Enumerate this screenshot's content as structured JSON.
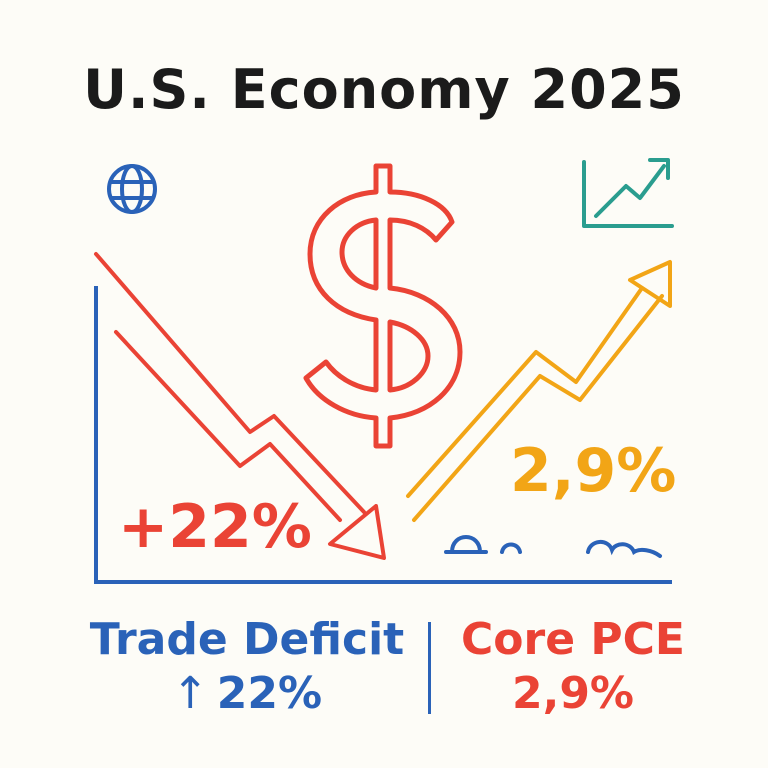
{
  "title": "U.S. Economy 2025",
  "overlay": {
    "left_value": "+22%",
    "right_value": "2,9%"
  },
  "captions": {
    "left": {
      "label": "Trade Deficit",
      "arrow": "↑",
      "value": "22%"
    },
    "right": {
      "label": "Core PCE",
      "value": "2,9%"
    }
  },
  "icons": [
    "globe-icon",
    "dollar-sign-icon",
    "rising-chart-icon",
    "down-trend-arrow",
    "up-trend-arrow",
    "cloud-icon"
  ],
  "colors": {
    "blue": "#2a62b8",
    "red": "#ea4335",
    "orange": "#f2a516",
    "teal": "#2a9d8f",
    "text": "#1b1b1b"
  }
}
